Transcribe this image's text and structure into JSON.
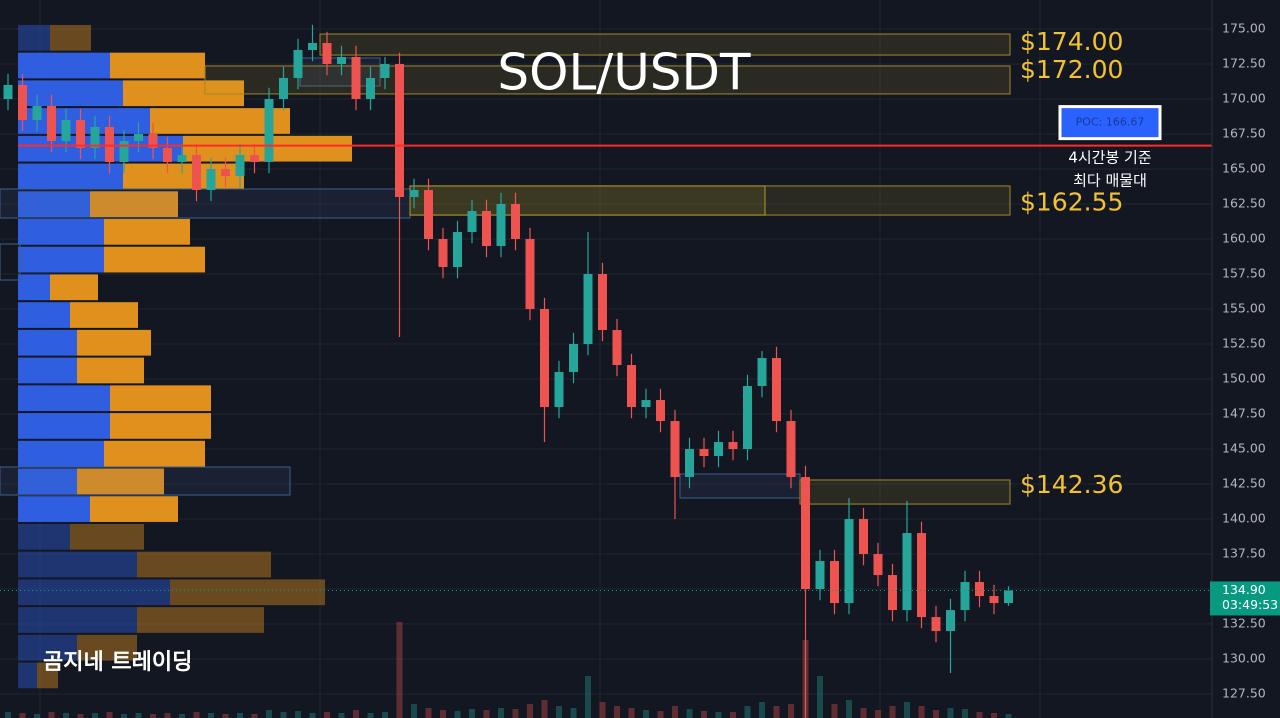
{
  "chart_data": {
    "type": "candlestick",
    "title": "SOL/USDT",
    "watermark": "곰지네 트레이딩",
    "ylim": [
      125.79,
      177.07
    ],
    "yticks": [
      {
        "value": 127.5,
        "label": "127.50"
      },
      {
        "value": 130,
        "label": "130.00"
      },
      {
        "value": 132.5,
        "label": "132.50"
      },
      {
        "value": 135,
        "label": "135.00"
      },
      {
        "value": 137.5,
        "label": "137.50"
      },
      {
        "value": 140,
        "label": "140.00"
      },
      {
        "value": 142.5,
        "label": "142.50"
      },
      {
        "value": 145,
        "label": "145.00"
      },
      {
        "value": 147.5,
        "label": "147.50"
      },
      {
        "value": 150,
        "label": "150.00"
      },
      {
        "value": 152.5,
        "label": "152.50"
      },
      {
        "value": 155,
        "label": "155.00"
      },
      {
        "value": 157.5,
        "label": "157.50"
      },
      {
        "value": 160,
        "label": "160.00"
      },
      {
        "value": 162.5,
        "label": "162.50"
      },
      {
        "value": 165,
        "label": "165.00"
      },
      {
        "value": 167.5,
        "label": "167.50"
      },
      {
        "value": 170,
        "label": "170.00"
      },
      {
        "value": 172.5,
        "label": "172.50"
      },
      {
        "value": 175,
        "label": "175.00"
      }
    ],
    "grid": true,
    "up_color": "#26a69a",
    "down_color": "#ef5350",
    "candles": {
      "open": [
        170.0,
        171.0,
        168.5,
        169.5,
        167.0,
        168.5,
        166.5,
        168.0,
        165.5,
        167.0,
        167.5,
        166.5,
        165.5,
        166.0,
        163.5,
        165.0,
        164.5,
        166.0,
        165.5,
        170.0,
        171.5,
        173.5,
        174.0,
        172.5,
        173.0,
        170.0,
        171.5,
        172.5,
        163.0,
        163.5,
        160.0,
        158.0,
        160.5,
        162.0,
        159.5,
        162.5,
        160.0,
        155.0,
        148.0,
        150.5,
        152.5,
        157.5,
        153.5,
        151.0,
        148.0,
        148.5,
        147.0,
        143.0,
        145.0,
        144.5,
        145.5,
        145.0,
        149.5,
        151.5,
        147.0,
        143.0,
        135.0,
        137.0,
        134.0,
        140.0,
        137.5,
        136.0,
        133.5,
        139.0,
        133.0,
        132.0,
        133.5,
        135.5,
        134.5,
        134.0
      ],
      "high": [
        171.8,
        171.8,
        170.3,
        170.3,
        169.3,
        169.3,
        168.8,
        168.8,
        167.8,
        168.3,
        168.3,
        167.3,
        166.8,
        166.8,
        165.8,
        165.8,
        166.8,
        166.8,
        170.8,
        172.3,
        174.3,
        175.3,
        174.8,
        173.8,
        173.8,
        172.3,
        173.0,
        173.3,
        164.3,
        164.3,
        160.8,
        161.3,
        162.8,
        162.8,
        163.3,
        163.3,
        160.8,
        155.8,
        151.3,
        153.3,
        160.5,
        158.3,
        154.3,
        151.8,
        149.3,
        149.3,
        147.8,
        145.8,
        145.8,
        146.3,
        146.3,
        150.3,
        152.0,
        152.3,
        147.8,
        143.8,
        137.8,
        137.8,
        141.5,
        140.8,
        138.3,
        136.8,
        141.3,
        139.8,
        133.8,
        134.3,
        136.3,
        136.3,
        135.3,
        135.2
      ],
      "low": [
        169.2,
        167.7,
        167.7,
        166.2,
        166.2,
        165.7,
        165.7,
        164.7,
        164.7,
        166.2,
        165.7,
        164.7,
        164.7,
        162.7,
        162.7,
        163.7,
        163.7,
        164.7,
        164.7,
        169.2,
        170.7,
        172.7,
        171.7,
        171.7,
        169.2,
        169.2,
        170.7,
        153.0,
        162.2,
        159.2,
        157.2,
        157.2,
        159.7,
        158.7,
        158.7,
        159.2,
        154.2,
        145.5,
        147.2,
        149.7,
        151.7,
        152.7,
        150.2,
        147.2,
        147.2,
        146.2,
        140.0,
        142.2,
        143.7,
        143.7,
        144.2,
        144.2,
        148.7,
        146.2,
        142.2,
        125.8,
        134.2,
        133.2,
        133.2,
        136.7,
        135.2,
        132.7,
        132.7,
        132.2,
        131.2,
        129.0,
        132.7,
        133.7,
        133.2,
        133.8
      ],
      "close": [
        171.0,
        168.5,
        169.5,
        167.0,
        168.5,
        166.5,
        168.0,
        165.5,
        167.0,
        167.5,
        166.5,
        165.5,
        166.0,
        163.5,
        165.0,
        164.5,
        166.0,
        165.5,
        170.0,
        171.5,
        173.5,
        174.0,
        172.5,
        173.0,
        170.0,
        171.5,
        172.5,
        163.0,
        163.5,
        160.0,
        158.0,
        160.5,
        162.0,
        159.5,
        162.5,
        160.0,
        155.0,
        148.0,
        150.5,
        152.5,
        157.5,
        153.5,
        151.0,
        148.0,
        148.5,
        147.0,
        143.0,
        145.0,
        144.5,
        145.5,
        145.0,
        149.5,
        151.5,
        147.0,
        143.0,
        135.0,
        137.0,
        134.0,
        140.0,
        137.5,
        136.0,
        133.5,
        139.0,
        133.0,
        132.0,
        133.5,
        135.5,
        134.5,
        134.0,
        134.9
      ],
      "volume": [
        6,
        5,
        4,
        6,
        5,
        4,
        5,
        6,
        4,
        5,
        4,
        5,
        4,
        6,
        5,
        4,
        5,
        4,
        8,
        6,
        7,
        5,
        6,
        5,
        8,
        5,
        6,
        96,
        14,
        10,
        8,
        7,
        9,
        8,
        10,
        9,
        14,
        18,
        12,
        10,
        42,
        16,
        12,
        10,
        8,
        7,
        12,
        9,
        7,
        6,
        6,
        12,
        16,
        12,
        14,
        78,
        42,
        14,
        18,
        10,
        8,
        12,
        16,
        12,
        8,
        10,
        9,
        6,
        5,
        4
      ]
    },
    "volume_profile": {
      "levels": [
        174.37,
        172.39,
        170.41,
        168.43,
        166.45,
        164.47,
        162.49,
        160.51,
        158.53,
        156.55,
        154.57,
        152.59,
        150.61,
        148.63,
        146.65,
        144.67,
        142.69,
        140.71,
        138.73,
        136.75,
        134.77,
        132.79,
        130.81,
        128.83
      ],
      "buy": [
        32,
        92,
        105,
        132,
        165,
        105,
        72,
        86,
        86,
        32,
        52,
        59,
        59,
        92,
        92,
        86,
        59,
        72,
        52,
        119,
        152,
        119,
        59,
        19
      ],
      "sell": [
        41,
        95,
        121,
        140,
        169,
        121,
        88,
        86,
        101,
        48,
        68,
        74,
        67,
        101,
        101,
        101,
        87,
        88,
        74,
        134,
        155,
        127,
        60,
        21
      ],
      "buy_color": "#2f5fe0",
      "sell_color": "#e0901c",
      "value_area": [
        139.72,
        173.38
      ]
    },
    "zones": [
      {
        "label": "$174.00",
        "value": 174,
        "top": 174.64,
        "bottom": 173.14
      },
      {
        "label": "$172.00",
        "value": 172,
        "top": 172.36,
        "bottom": 170.36
      },
      {
        "label": "$162.55",
        "value": 162.55,
        "top": 163.79,
        "bottom": 161.71
      },
      {
        "label": "$142.36",
        "value": 142.36,
        "top": 142.79,
        "bottom": 141.07
      }
    ],
    "poc": {
      "value": 166.67,
      "label": "POC: 166.67",
      "color": "#ff2a2a"
    },
    "annotation": [
      "4시간봉 기준",
      "최다 매물대"
    ],
    "current_price": {
      "value": 134.9,
      "label": "134.90",
      "countdown": "03:49:53",
      "color": "#089981"
    }
  }
}
